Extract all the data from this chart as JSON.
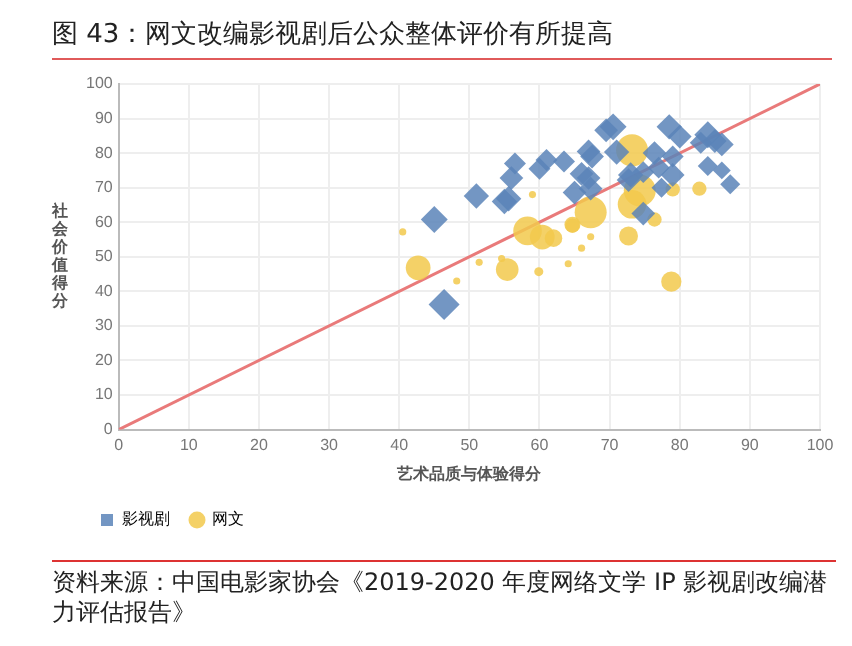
{
  "chart_data": {
    "type": "bubble",
    "title": "图 43：网文改编影视剧后公众整体评价有所提高",
    "xlabel": "艺术品质与体验得分",
    "ylabel": "社会价值得分",
    "xlim": [
      0,
      100
    ],
    "ylim": [
      0,
      100
    ],
    "xticks": [
      0,
      10,
      20,
      30,
      40,
      50,
      60,
      70,
      80,
      90,
      100
    ],
    "yticks": [
      0,
      10,
      20,
      30,
      40,
      50,
      60,
      70,
      80,
      90,
      100
    ],
    "grid": true,
    "legend": "bottom left",
    "annotations": [
      "资料来源：中国电影家协会《2019-2020 年度网络文学 IP 影视剧改编潜力评估报告》"
    ],
    "series": [
      {
        "name": "影视剧",
        "color": "#5b84b8",
        "marker": "diamond",
        "x": [
          70.5,
          69.5,
          78.5,
          80,
          84,
          85,
          83,
          86,
          71,
          67,
          67.5,
          76.4,
          79,
          56.5,
          61,
          63.5,
          60,
          56,
          66,
          67,
          73,
          72.7,
          74.8,
          77,
          79,
          84,
          86,
          87.2,
          65,
          67.3,
          77.4,
          51,
          55,
          55.6,
          45,
          74.8,
          46.4
        ],
        "values": [
          87.6,
          86.6,
          87.6,
          84.8,
          85.3,
          83.5,
          83,
          82.5,
          80.3,
          80.5,
          79,
          80,
          79,
          77,
          78,
          77.6,
          75.5,
          72.8,
          74,
          72.8,
          73.7,
          72.2,
          74.5,
          75.8,
          73.7,
          76.3,
          75,
          71,
          68.6,
          69.7,
          70,
          67.6,
          66,
          66.8,
          60.8,
          62.5,
          36.2
        ],
        "sizes": [
          0.45,
          0.35,
          0.4,
          0.35,
          0.45,
          0.35,
          0.3,
          0.35,
          0.4,
          0.35,
          0.35,
          0.35,
          0.3,
          0.3,
          0.3,
          0.3,
          0.3,
          0.35,
          0.35,
          0.35,
          0.4,
          0.35,
          0.3,
          0.3,
          0.35,
          0.25,
          0.2,
          0.25,
          0.35,
          0.35,
          0.25,
          0.4,
          0.4,
          0.4,
          0.45,
          0.35,
          0.6
        ]
      },
      {
        "name": "网文",
        "color": "#f2c94c",
        "marker": "circle",
        "x": [
          73.2,
          74.3,
          73.2,
          67.3,
          58.3,
          60.4,
          79,
          82.8,
          76.4,
          72.7,
          64.7,
          40.5,
          59,
          42.7,
          55.4,
          59.9,
          78.8,
          51.4,
          54.6,
          48.2,
          64.1,
          66,
          67.3,
          64.7,
          62
        ],
        "values": [
          80.8,
          69.2,
          65.2,
          62.9,
          57.5,
          55.7,
          69.5,
          69.7,
          60.8,
          56,
          59.3,
          57.2,
          68,
          46.8,
          46.3,
          45.7,
          42.8,
          48.4,
          49.5,
          43,
          48,
          52.5,
          55.8,
          59,
          55.4
        ],
        "sizes": [
          1,
          1,
          0.8,
          1,
          0.8,
          0.6,
          0.2,
          0.2,
          0.2,
          0.35,
          0.25,
          0.05,
          0.05,
          0.6,
          0.5,
          0.08,
          0.4,
          0.05,
          0.05,
          0.05,
          0.05,
          0.05,
          0.05,
          0.2,
          0.3
        ]
      },
      {
        "type": "line",
        "color": "#e97a7a",
        "x": [
          0,
          100
        ],
        "values": [
          0,
          100
        ]
      }
    ]
  }
}
